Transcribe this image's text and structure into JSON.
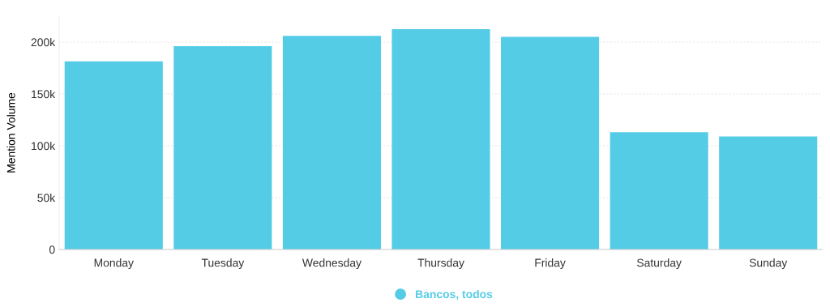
{
  "chart_data": {
    "type": "bar",
    "ylabel": "Mention Volume",
    "categories": [
      "Monday",
      "Tuesday",
      "Wednesday",
      "Thursday",
      "Friday",
      "Saturday",
      "Sunday"
    ],
    "series": [
      {
        "name": "Bancos, todos",
        "color": "#55cce6",
        "values": [
          181500,
          196000,
          206000,
          212500,
          205000,
          113000,
          109000
        ]
      }
    ],
    "yticks": [
      {
        "value": 0,
        "label": "0"
      },
      {
        "value": 50000,
        "label": "50k"
      },
      {
        "value": 100000,
        "label": "100k"
      },
      {
        "value": 150000,
        "label": "150k"
      },
      {
        "value": 200000,
        "label": "200k"
      }
    ],
    "ylim": [
      0,
      225000
    ],
    "grid": "y",
    "legend": "bottom",
    "marker": "circle"
  }
}
